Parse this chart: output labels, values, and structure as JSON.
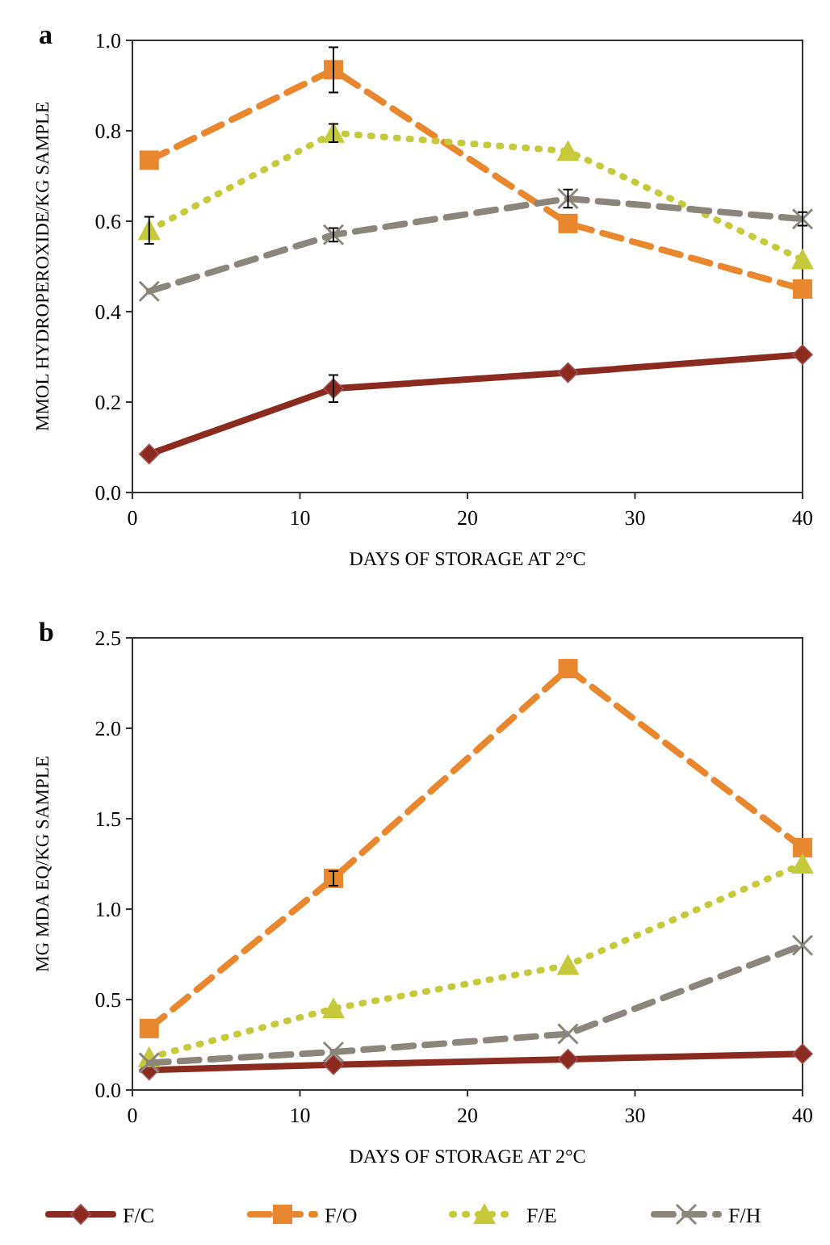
{
  "chart_data": [
    {
      "type": "line",
      "title": "a",
      "xlabel": "DAYS OF STORAGE AT 2°C",
      "ylabel": "MMOL HYDROPEROXIDE/KG SAMPLE",
      "x": [
        1,
        12,
        26,
        40
      ],
      "xlim": [
        0,
        40
      ],
      "xticks": [
        0,
        10,
        20,
        30,
        40
      ],
      "ylim": [
        0,
        1
      ],
      "yticks": [
        {
          "value": 0,
          "label": "0.0"
        },
        0.2,
        0.4,
        0.6,
        0.8,
        {
          "value": 1,
          "label": "1.0"
        }
      ],
      "grid": false,
      "legend": false,
      "series": [
        {
          "color": "#8b2a1e",
          "marker": "diamond",
          "line_style": "solid",
          "values": [
            0.085,
            0.23,
            0.265,
            0.305
          ],
          "errors": [
            null,
            0.03,
            null,
            null
          ]
        },
        {
          "color": "#e8872e",
          "marker": "square",
          "line_style": "dashed",
          "values": [
            0.735,
            0.935,
            0.595,
            0.45
          ],
          "errors": [
            null,
            0.05,
            null,
            null
          ]
        },
        {
          "color": "#c5c93a",
          "marker": "triangle",
          "line_style": "dotted",
          "values": [
            0.58,
            0.795,
            0.755,
            0.515
          ],
          "errors": [
            0.03,
            0.02,
            null,
            null
          ]
        },
        {
          "color": "#8c857a",
          "marker": "cross",
          "line_style": "dashed",
          "values": [
            0.445,
            0.57,
            0.65,
            0.605
          ],
          "errors": [
            null,
            0.015,
            0.02,
            0.015
          ]
        }
      ]
    },
    {
      "type": "line",
      "title": "b",
      "xlabel": "DAYS OF STORAGE AT 2°C",
      "ylabel": "MG MDA EQ/KG SAMPLE",
      "x": [
        1,
        12,
        26,
        40
      ],
      "xlim": [
        0,
        40
      ],
      "xticks": [
        0,
        10,
        20,
        30,
        40
      ],
      "ylim": [
        0,
        2.5
      ],
      "yticks": [
        {
          "value": 0,
          "label": "0.0"
        },
        0.5,
        {
          "value": 1,
          "label": "1.0"
        },
        1.5,
        {
          "value": 2,
          "label": "2.0"
        },
        2.5
      ],
      "grid": false,
      "legend": "bottom",
      "series": [
        {
          "name": "F/C",
          "color": "#8b2a1e",
          "marker": "diamond",
          "line_style": "solid",
          "values": [
            0.11,
            0.14,
            0.17,
            0.2
          ]
        },
        {
          "name": "F/O",
          "color": "#e8872e",
          "marker": "square",
          "line_style": "dashed",
          "values": [
            0.34,
            1.17,
            2.33,
            1.34
          ],
          "errors": [
            null,
            0.04,
            null,
            null
          ]
        },
        {
          "name": "F/E",
          "color": "#c5c93a",
          "marker": "triangle",
          "line_style": "dotted",
          "values": [
            0.18,
            0.45,
            0.69,
            1.25
          ]
        },
        {
          "name": "F/H",
          "color": "#8c857a",
          "marker": "cross",
          "line_style": "dashed",
          "values": [
            0.15,
            0.21,
            0.31,
            0.8
          ]
        }
      ]
    }
  ]
}
